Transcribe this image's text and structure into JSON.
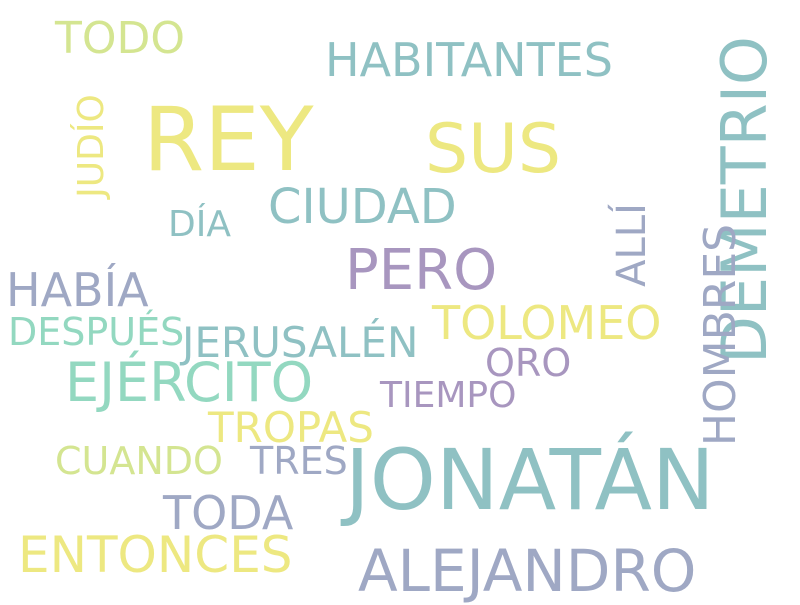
{
  "colors": {
    "yellow": "#ede881",
    "lime": "#d4e591",
    "mint": "#93d8c0",
    "teal": "#8fc1c3",
    "slate": "#9fa8c4",
    "purple": "#a896bf"
  },
  "words": [
    {
      "text": "TODO",
      "color": "lime",
      "orientation": "horizontal"
    },
    {
      "text": "HABITANTES",
      "color": "teal",
      "orientation": "horizontal"
    },
    {
      "text": "DEMETRIO",
      "color": "teal",
      "orientation": "vertical"
    },
    {
      "text": "REY",
      "color": "yellow",
      "orientation": "horizontal"
    },
    {
      "text": "SUS",
      "color": "yellow",
      "orientation": "horizontal"
    },
    {
      "text": "JUDÍO",
      "color": "yellow",
      "orientation": "vertical"
    },
    {
      "text": "CIUDAD",
      "color": "teal",
      "orientation": "horizontal"
    },
    {
      "text": "DÍA",
      "color": "teal",
      "orientation": "horizontal"
    },
    {
      "text": "ALLÍ",
      "color": "slate",
      "orientation": "vertical"
    },
    {
      "text": "PERO",
      "color": "purple",
      "orientation": "horizontal"
    },
    {
      "text": "HABÍA",
      "color": "slate",
      "orientation": "horizontal"
    },
    {
      "text": "HOMBRES",
      "color": "slate",
      "orientation": "vertical"
    },
    {
      "text": "TOLOMEO",
      "color": "yellow",
      "orientation": "horizontal"
    },
    {
      "text": "DESPUÉS",
      "color": "mint",
      "orientation": "horizontal"
    },
    {
      "text": "JERUSALÉN",
      "color": "teal",
      "orientation": "horizontal"
    },
    {
      "text": "ORO",
      "color": "purple",
      "orientation": "horizontal"
    },
    {
      "text": "EJÉRCITO",
      "color": "mint",
      "orientation": "horizontal"
    },
    {
      "text": "TIEMPO",
      "color": "purple",
      "orientation": "horizontal"
    },
    {
      "text": "TROPAS",
      "color": "yellow",
      "orientation": "horizontal"
    },
    {
      "text": "CUANDO",
      "color": "lime",
      "orientation": "horizontal"
    },
    {
      "text": "TRES",
      "color": "slate",
      "orientation": "horizontal"
    },
    {
      "text": "JONATÁN",
      "color": "teal",
      "orientation": "horizontal"
    },
    {
      "text": "TODA",
      "color": "slate",
      "orientation": "horizontal"
    },
    {
      "text": "ENTONCES",
      "color": "yellow",
      "orientation": "horizontal"
    },
    {
      "text": "ALEJANDRO",
      "color": "slate",
      "orientation": "horizontal"
    }
  ]
}
